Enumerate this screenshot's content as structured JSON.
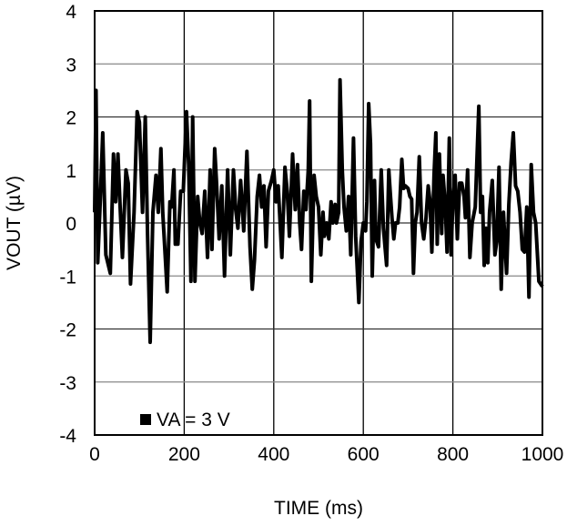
{
  "chart_data": {
    "type": "line",
    "title": "",
    "xlabel": "TIME (ms)",
    "ylabel": "VOUT (µV)",
    "xlim": [
      0,
      1000
    ],
    "ylim": [
      -4,
      4
    ],
    "xticks": [
      0,
      200,
      400,
      600,
      800,
      1000
    ],
    "yticks": [
      -4,
      -3,
      -2,
      -1,
      0,
      1,
      2,
      3,
      4
    ],
    "grid": true,
    "legend_placement": "bottom-left",
    "series": [
      {
        "name": "VA = 3 V",
        "color": "#000000",
        "x": [
          0,
          3,
          7,
          12,
          18,
          25,
          35,
          42,
          47,
          52,
          57,
          62,
          70,
          75,
          80,
          88,
          95,
          100,
          107,
          113,
          118,
          124,
          130,
          137,
          142,
          148,
          152,
          156,
          162,
          168,
          172,
          177,
          180,
          186,
          192,
          198,
          205,
          210,
          215,
          219,
          224,
          230,
          235,
          240,
          246,
          252,
          258,
          262,
          268,
          272,
          278,
          284,
          290,
          297,
          303,
          310,
          315,
          320,
          326,
          333,
          340,
          347,
          352,
          357,
          363,
          368,
          373,
          378,
          383,
          388,
          395,
          400,
          405,
          410,
          418,
          425,
          430,
          435,
          442,
          448,
          453,
          458,
          462,
          467,
          472,
          477,
          480,
          484,
          490,
          495,
          500,
          505,
          510,
          513,
          518,
          523,
          528,
          532,
          537,
          540,
          545,
          548,
          553,
          557,
          562,
          567,
          572,
          578,
          583,
          590,
          595,
          600,
          605,
          608,
          612,
          616,
          620,
          625,
          628,
          634,
          640,
          645,
          652,
          657,
          660,
          664,
          668,
          672,
          677,
          681,
          686,
          690,
          694,
          700,
          704,
          708,
          712,
          716,
          720,
          725,
          730,
          735,
          740,
          745,
          749,
          753,
          758,
          762,
          765,
          770,
          775,
          778,
          783,
          787,
          792,
          796,
          800,
          805,
          810,
          815,
          820,
          825,
          828,
          833,
          838,
          843,
          850,
          858,
          862,
          866,
          870,
          874,
          878,
          882,
          888,
          894,
          898,
          903,
          908,
          913,
          920,
          925,
          930,
          935,
          940,
          945,
          950,
          955,
          960,
          965,
          970,
          975,
          980,
          985,
          992,
          1000
        ],
        "y": [
          0.2,
          2.5,
          -0.75,
          0.3,
          1.7,
          -0.6,
          -0.95,
          1.3,
          0.4,
          1.3,
          0.3,
          -0.65,
          1.0,
          0.75,
          -1.15,
          0.2,
          2.1,
          1.9,
          0.2,
          2.0,
          -0.2,
          -2.25,
          0.2,
          0.9,
          0.2,
          1.4,
          0.2,
          -0.4,
          -1.3,
          0.4,
          0.3,
          1.0,
          -0.4,
          -0.4,
          0.6,
          0.6,
          2.1,
          1.1,
          -1.1,
          2.0,
          -1.1,
          0.5,
          0.0,
          -0.2,
          0.6,
          -0.65,
          1.0,
          -0.5,
          1.4,
          0.8,
          -0.3,
          0.7,
          -1.0,
          1.0,
          -0.6,
          1.0,
          0.25,
          -0.1,
          0.8,
          -0.15,
          1.35,
          -0.45,
          -1.25,
          -0.7,
          0.5,
          0.9,
          0.3,
          0.7,
          -0.45,
          0.6,
          0.8,
          1.0,
          0.4,
          0.7,
          -0.65,
          1.05,
          0.6,
          -0.25,
          1.3,
          0.25,
          1.1,
          0.0,
          -0.5,
          0.6,
          0.25,
          1.0,
          2.3,
          -1.1,
          0.9,
          0.5,
          0.3,
          -0.6,
          0.2,
          -0.25,
          0.0,
          -0.3,
          0.4,
          0.0,
          0.35,
          0.0,
          0.2,
          2.7,
          1.0,
          0.3,
          -0.15,
          0.5,
          -0.6,
          1.6,
          -0.25,
          -1.5,
          -0.35,
          0.0,
          -0.15,
          0.4,
          2.25,
          1.5,
          -1.0,
          0.8,
          -0.3,
          -0.45,
          1.0,
          -0.1,
          -0.8,
          1.0,
          0.6,
          0.1,
          -0.3,
          0.0,
          0.0,
          0.3,
          1.2,
          0.65,
          0.7,
          0.65,
          0.5,
          0.45,
          -0.95,
          0.0,
          0.2,
          1.25,
          0.0,
          -0.3,
          0.1,
          0.7,
          0.4,
          -0.55,
          0.9,
          1.7,
          -0.4,
          1.3,
          -0.2,
          0.9,
          0.35,
          -0.55,
          1.6,
          -0.6,
          0.4,
          0.9,
          -0.3,
          0.75,
          0.75,
          0.5,
          0.1,
          1.0,
          -0.65,
          0.0,
          0.3,
          2.2,
          0.2,
          0.5,
          -0.8,
          -0.1,
          -0.75,
          0.2,
          0.8,
          -0.6,
          -0.35,
          1.05,
          -1.25,
          0.2,
          -0.95,
          0.35,
          1.15,
          1.7,
          0.7,
          0.6,
          0.2,
          -0.5,
          -0.55,
          0.3,
          -1.4,
          1.1,
          0.2,
          0.0,
          -1.1,
          -1.2
        ]
      }
    ],
    "x_tick_labels": [
      "0",
      "200",
      "400",
      "600",
      "800",
      "1000"
    ],
    "y_tick_labels": [
      "-4",
      "-3",
      "-2",
      "-1",
      "0",
      "1",
      "2",
      "3",
      "4"
    ]
  }
}
